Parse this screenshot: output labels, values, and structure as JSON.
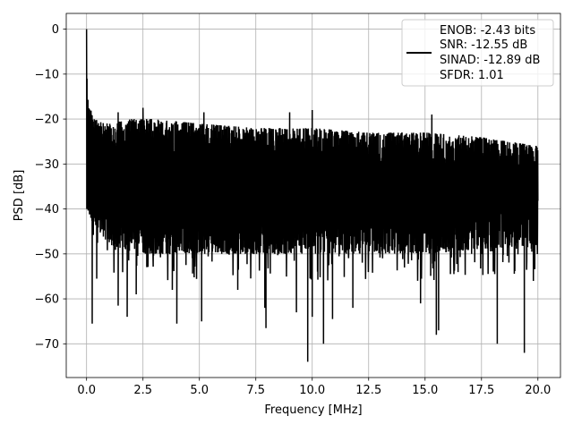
{
  "chart_data": {
    "type": "line",
    "xlabel": "Frequency [MHz]",
    "ylabel": "PSD [dB]",
    "xlim": [
      -0.9,
      21.0
    ],
    "ylim": [
      -77.5,
      3.5
    ],
    "x_ticks": [
      0.0,
      2.5,
      5.0,
      7.5,
      10.0,
      12.5,
      15.0,
      17.5,
      20.0
    ],
    "x_tick_labels": [
      "0.0",
      "2.5",
      "5.0",
      "7.5",
      "10.0",
      "12.5",
      "15.0",
      "17.5",
      "20.0"
    ],
    "y_ticks": [
      0,
      -10,
      -20,
      -30,
      -40,
      -50,
      -60,
      -70
    ],
    "y_tick_labels": [
      "0",
      "−10",
      "−20",
      "−30",
      "−40",
      "−50",
      "−60",
      "−70"
    ],
    "grid": true,
    "legend_placement": "top-right",
    "series": [
      {
        "name": "ENOB: -2.43 bits\nSNR: -12.55 dB\nSINAD: -12.89 dB\nSFDR: 1.01",
        "color": "#000000",
        "x_range": [
          0.0,
          20.0
        ],
        "peak": {
          "x": 0.0,
          "y": 0.0
        },
        "noise_floor_mean": -33,
        "noise_band_upper": [
          [
            0.0,
            -14
          ],
          [
            0.3,
            -20
          ],
          [
            1.0,
            -21
          ],
          [
            2.0,
            -20
          ],
          [
            3.0,
            -20
          ],
          [
            5.0,
            -21
          ],
          [
            7.5,
            -22
          ],
          [
            10.0,
            -22
          ],
          [
            12.5,
            -23
          ],
          [
            15.0,
            -23
          ],
          [
            17.5,
            -24
          ],
          [
            20.0,
            -26
          ]
        ],
        "noise_band_lower": [
          [
            0.0,
            -41
          ],
          [
            1.0,
            -48
          ],
          [
            2.5,
            -50
          ],
          [
            5.0,
            -50
          ],
          [
            7.5,
            -50
          ],
          [
            10.0,
            -50
          ],
          [
            12.5,
            -50
          ],
          [
            15.0,
            -50
          ],
          [
            17.5,
            -49
          ],
          [
            20.0,
            -48
          ]
        ],
        "spikes_up": [
          [
            0.02,
            -11
          ],
          [
            1.4,
            -18.5
          ],
          [
            2.5,
            -17.5
          ],
          [
            5.2,
            -18.5
          ],
          [
            9.0,
            -18.5
          ],
          [
            10.0,
            -18
          ],
          [
            15.3,
            -19
          ]
        ],
        "spikes_down": [
          [
            0.25,
            -65.5
          ],
          [
            0.45,
            -55.5
          ],
          [
            1.4,
            -61.5
          ],
          [
            1.8,
            -64
          ],
          [
            2.2,
            -59
          ],
          [
            3.8,
            -58
          ],
          [
            4.0,
            -65.5
          ],
          [
            5.1,
            -65
          ],
          [
            6.7,
            -58
          ],
          [
            7.9,
            -62
          ],
          [
            7.95,
            -66.5
          ],
          [
            9.3,
            -63
          ],
          [
            9.8,
            -74
          ],
          [
            10.0,
            -64
          ],
          [
            10.5,
            -70
          ],
          [
            10.9,
            -64.5
          ],
          [
            11.8,
            -62
          ],
          [
            14.8,
            -61
          ],
          [
            15.5,
            -68
          ],
          [
            15.6,
            -67
          ],
          [
            18.2,
            -70
          ],
          [
            19.4,
            -72
          ],
          [
            19.8,
            -56
          ]
        ]
      }
    ]
  },
  "legend": {
    "lines": [
      "ENOB: -2.43 bits",
      "SNR: -12.55 dB",
      "SINAD: -12.89 dB",
      "SFDR: 1.01"
    ],
    "line_color": "#000000"
  },
  "colors": {
    "background": "#ffffff",
    "axes": "#000000",
    "grid": "#b0b0b0",
    "trace": "#000000"
  }
}
